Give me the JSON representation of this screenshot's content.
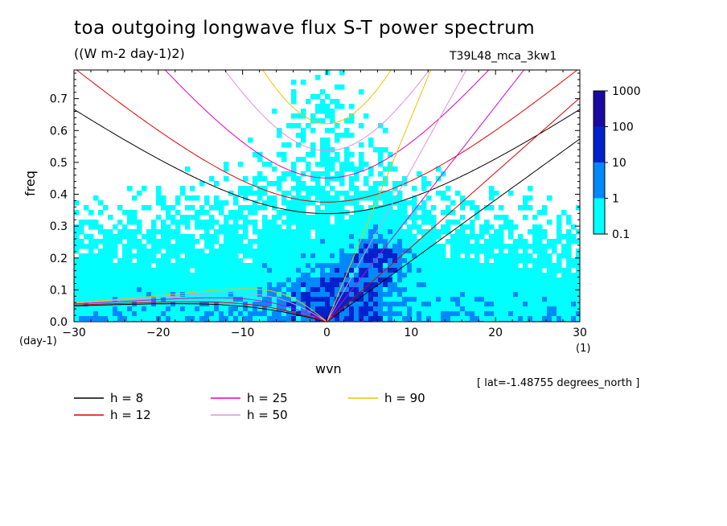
{
  "title": "toa outgoing longwave flux S-T power spectrum",
  "subtitle": "((W m-2 day-1)2)",
  "run_id": "T39L48_mca_3kw1",
  "lat_info": "[ lat=-1.48755 degrees_north ]",
  "colorbar": {
    "levels": [
      "0.1",
      "1",
      "10",
      "100",
      "1000"
    ],
    "colors": [
      "#00ffff",
      "#0088ff",
      "#0022cc",
      "#1a0aa0"
    ]
  },
  "chart_data": {
    "type": "contour",
    "title": "toa outgoing longwave flux S-T power spectrum",
    "subtitle": "((W m-2 day-1)2)",
    "xlabel": "wvn",
    "xunit": "(1)",
    "ylabel": "freq",
    "yunit": "(day-1)",
    "xlim": [
      -30,
      30
    ],
    "ylim": [
      0,
      0.79
    ],
    "xticks": [
      -30,
      -20,
      -10,
      0,
      10,
      20,
      30
    ],
    "yticks": [
      0.0,
      0.1,
      0.2,
      0.3,
      0.4,
      0.5,
      0.6,
      0.7
    ],
    "ytick_labels": [
      "0.0",
      "0.1",
      "0.2",
      "0.3",
      "0.4",
      "0.5",
      "0.6",
      "0.7"
    ],
    "series": [
      {
        "name": "h =  8",
        "h": 8,
        "color": "#000000"
      },
      {
        "name": "h = 12",
        "h": 12,
        "color": "#e00000"
      },
      {
        "name": "h = 25",
        "h": 25,
        "color": "#e000c0"
      },
      {
        "name": "h = 50",
        "h": 50,
        "color": "#e090e0"
      },
      {
        "name": "h = 90",
        "h": 90,
        "color": "#f0c000"
      }
    ]
  }
}
